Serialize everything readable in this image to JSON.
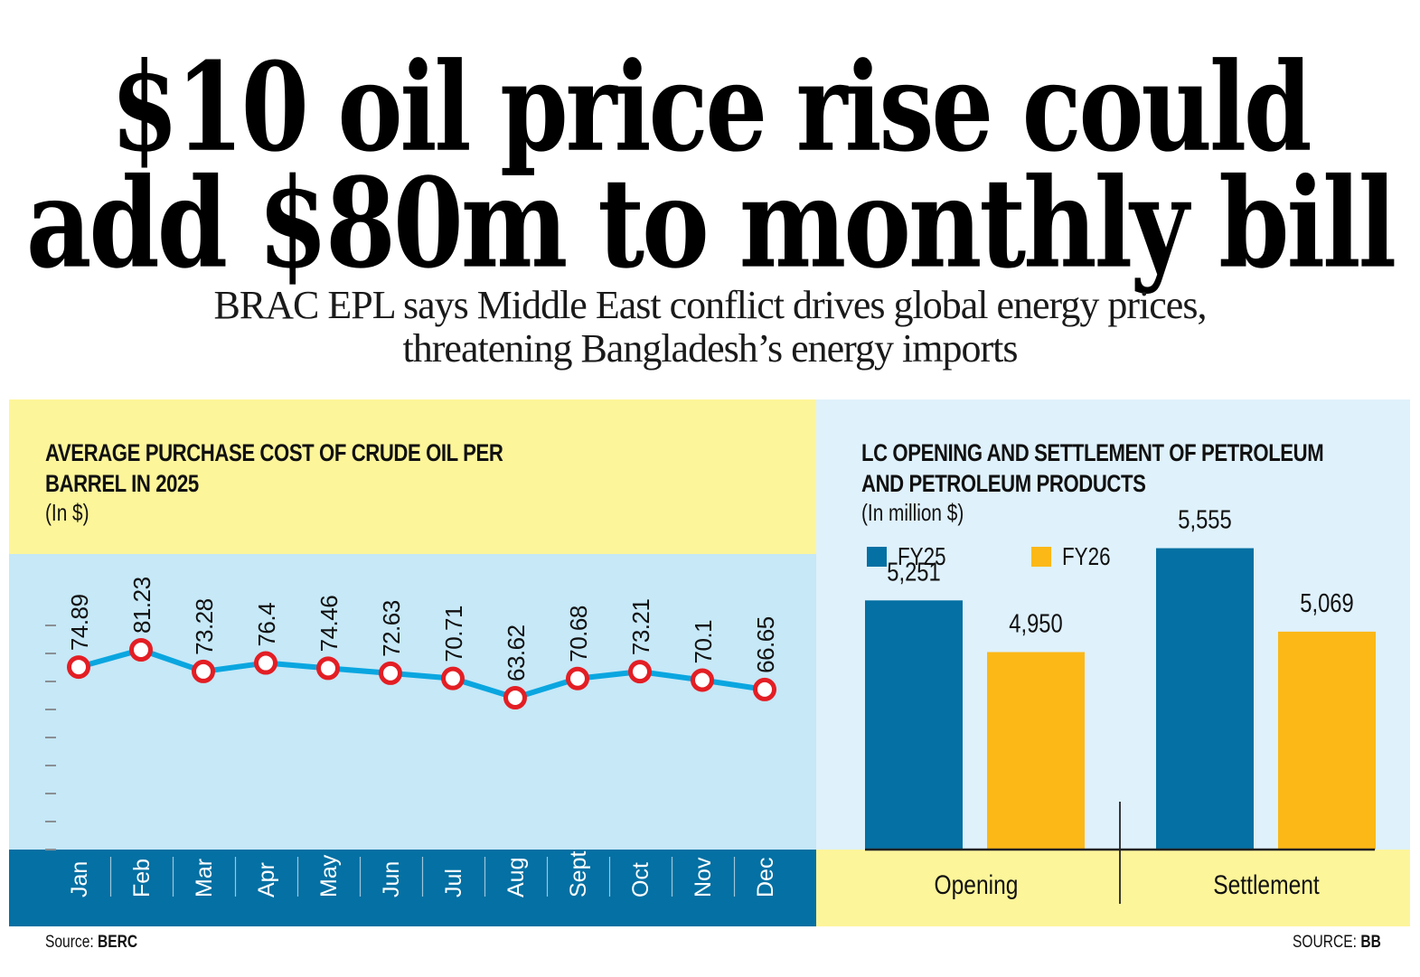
{
  "headline": {
    "line1": "$10 oil price rise could",
    "line2": "add $80m to monthly bill"
  },
  "subheadline": {
    "line1": "BRAC EPL says Middle East conflict drives global energy prices,",
    "line2": "threatening Bangladesh’s energy imports"
  },
  "colors": {
    "yellow_bg": "#fdf59a",
    "light_blue_bg": "#c6e8f7",
    "pale_blue_bg": "#dff1fb",
    "dark_blue": "#0470a3",
    "line_blue": "#0aa6e0",
    "marker_red": "#e31e24",
    "fy26_yellow": "#fbb817"
  },
  "chart_data": [
    {
      "type": "line",
      "title": "AVERAGE PURCHASE COST OF CRUDE OIL PER BARREL IN 2025",
      "title_line1": "AVERAGE PURCHASE COST OF CRUDE OIL PER",
      "title_line2": "BARREL IN 2025",
      "unit": "(In $)",
      "xlabel": "",
      "ylabel": "",
      "categories": [
        "Jan",
        "Feb",
        "Mar",
        "Apr",
        "May",
        "Jun",
        "Jul",
        "Aug",
        "Sept",
        "Oct",
        "Nov",
        "Dec"
      ],
      "values": [
        74.89,
        81.23,
        73.28,
        76.4,
        74.46,
        72.63,
        70.71,
        63.62,
        70.68,
        73.21,
        70.1,
        66.65
      ],
      "data_labels": [
        "74.89",
        "81.23",
        "73.28",
        "76.4",
        "74.46",
        "72.63",
        "70.71",
        "63.62",
        "70.68",
        "73.21",
        "70.1",
        "66.65"
      ],
      "ylim": [
        0,
        100
      ],
      "grid": false,
      "source_label": "Source:",
      "source_value": "BERC"
    },
    {
      "type": "bar",
      "title": "LC OPENING AND SETTLEMENT OF PETROLEUM AND PETROLEUM PRODUCTS",
      "title_line1": "LC OPENING AND SETTLEMENT OF PETROLEUM",
      "title_line2": "AND PETROLEUM PRODUCTS",
      "unit": "(In million $)",
      "categories": [
        "Opening",
        "Settlement"
      ],
      "series": [
        {
          "name": "FY25",
          "values": [
            5251,
            5555
          ],
          "labels": [
            "5,251",
            "5,555"
          ],
          "color": "#0470a3"
        },
        {
          "name": "FY26",
          "values": [
            4950,
            5069
          ],
          "labels": [
            "4,950",
            "5,069"
          ],
          "color": "#fbb817"
        }
      ],
      "ylim": [
        3800,
        5800
      ],
      "legend": "top-left",
      "grid": false,
      "source_label": "SOURCE:",
      "source_value": "BB"
    }
  ]
}
